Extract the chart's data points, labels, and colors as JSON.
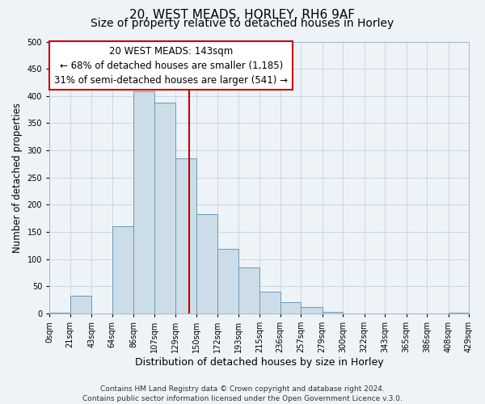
{
  "title_line1": "20, WEST MEADS, HORLEY, RH6 9AF",
  "title_line2": "Size of property relative to detached houses in Horley",
  "xlabel": "Distribution of detached houses by size in Horley",
  "ylabel": "Number of detached properties",
  "bin_edges": [
    0,
    21,
    43,
    64,
    86,
    107,
    129,
    150,
    172,
    193,
    215,
    236,
    257,
    279,
    300,
    322,
    343,
    365,
    386,
    408,
    429
  ],
  "bin_values": [
    2,
    33,
    0,
    160,
    408,
    388,
    285,
    183,
    119,
    85,
    40,
    20,
    12,
    3,
    0,
    0,
    0,
    0,
    0,
    2
  ],
  "bar_color": "#ccdde8",
  "bar_edge_color": "#6699bb",
  "vline_x": 143,
  "vline_color": "#cc0000",
  "annotation_text_line1": "20 WEST MEADS: 143sqm",
  "annotation_text_line2": "← 68% of detached houses are smaller (1,185)",
  "annotation_text_line3": "31% of semi-detached houses are larger (541) →",
  "annotation_box_edge_color": "#cc0000",
  "annotation_box_face_color": "#ffffff",
  "footer_text": "Contains HM Land Registry data © Crown copyright and database right 2024.\nContains public sector information licensed under the Open Government Licence v.3.0.",
  "xlim": [
    0,
    429
  ],
  "ylim": [
    0,
    500
  ],
  "yticks": [
    0,
    50,
    100,
    150,
    200,
    250,
    300,
    350,
    400,
    450,
    500
  ],
  "xtick_labels": [
    "0sqm",
    "21sqm",
    "43sqm",
    "64sqm",
    "86sqm",
    "107sqm",
    "129sqm",
    "150sqm",
    "172sqm",
    "193sqm",
    "215sqm",
    "236sqm",
    "257sqm",
    "279sqm",
    "300sqm",
    "322sqm",
    "343sqm",
    "365sqm",
    "386sqm",
    "408sqm",
    "429sqm"
  ],
  "bg_color": "#eef3f8",
  "grid_color": "#c8d8e4",
  "title1_fontsize": 11,
  "title2_fontsize": 10,
  "xlabel_fontsize": 9,
  "ylabel_fontsize": 8.5,
  "tick_fontsize": 7,
  "annotation_fontsize": 8.5,
  "footer_fontsize": 6.5
}
